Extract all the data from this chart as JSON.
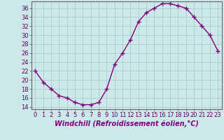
{
  "x": [
    0,
    1,
    2,
    3,
    4,
    5,
    6,
    7,
    8,
    9,
    10,
    11,
    12,
    13,
    14,
    15,
    16,
    17,
    18,
    19,
    20,
    21,
    22,
    23
  ],
  "y": [
    22,
    19.5,
    18,
    16.5,
    16,
    15,
    14.5,
    14.5,
    15,
    18,
    23.5,
    26,
    29,
    33,
    35,
    36,
    37,
    37,
    36.5,
    36,
    34,
    32,
    30,
    26.5
  ],
  "line_color": "#800080",
  "marker": "+",
  "marker_size": 4,
  "marker_linewidth": 1.0,
  "line_width": 1.0,
  "bg_color": "#cce8e8",
  "grid_color": "#aacccc",
  "xlabel": "Windchill (Refroidissement éolien,°C)",
  "xlabel_fontsize": 7,
  "tick_fontsize": 6,
  "ylim": [
    13.5,
    37.5
  ],
  "xlim": [
    -0.5,
    23.5
  ],
  "yticks": [
    14,
    16,
    18,
    20,
    22,
    24,
    26,
    28,
    30,
    32,
    34,
    36
  ],
  "xticks": [
    0,
    1,
    2,
    3,
    4,
    5,
    6,
    7,
    8,
    9,
    10,
    11,
    12,
    13,
    14,
    15,
    16,
    17,
    18,
    19,
    20,
    21,
    22,
    23
  ]
}
